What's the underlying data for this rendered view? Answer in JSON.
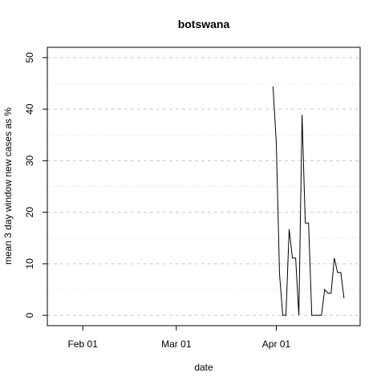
{
  "chart_data": {
    "type": "line",
    "title": "botswana",
    "xlabel": "date",
    "ylabel": "mean  3  day window new cases as %",
    "x_ticks": [
      "2020-02-01",
      "2020-03-01",
      "2020-04-01"
    ],
    "x_tick_labels": [
      "Feb 01",
      "Mar 01",
      "Apr 01"
    ],
    "y_ticks": [
      0,
      10,
      20,
      30,
      40,
      50
    ],
    "y_tick_labels": [
      "0",
      "10",
      "20",
      "30",
      "40",
      "50"
    ],
    "xlim": [
      "2020-01-21",
      "2020-04-27"
    ],
    "ylim": [
      -2,
      52
    ],
    "grid": "horizontal dashed",
    "series": [
      {
        "color": "#000000",
        "x": [
          "2020-03-31",
          "2020-04-01",
          "2020-04-02",
          "2020-04-03",
          "2020-04-04",
          "2020-04-05",
          "2020-04-06",
          "2020-04-07",
          "2020-04-08",
          "2020-04-09",
          "2020-04-10",
          "2020-04-11",
          "2020-04-12",
          "2020-04-13",
          "2020-04-14",
          "2020-04-15",
          "2020-04-16",
          "2020-04-17",
          "2020-04-18",
          "2020-04-19",
          "2020-04-20",
          "2020-04-21",
          "2020-04-22",
          "2020-04-23"
        ],
        "values": [
          44.4,
          33.3,
          8.0,
          0.0,
          0.0,
          16.7,
          11.1,
          11.1,
          0.0,
          38.9,
          17.9,
          17.9,
          0.0,
          0.0,
          0.0,
          0.0,
          5.0,
          4.3,
          4.3,
          11.1,
          8.3,
          8.3,
          3.3,
          null
        ]
      }
    ]
  }
}
